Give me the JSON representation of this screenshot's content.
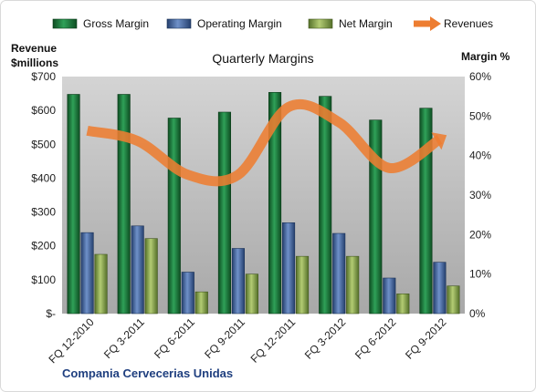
{
  "chart_data": {
    "type": "bar",
    "title": "Quarterly Margins",
    "subtitle": "Compania Cervecerias Unidas",
    "ylabel_left": "Revenue $millions",
    "ylabel_right": "Margin %",
    "categories": [
      "FQ 12-2010",
      "FQ 3-2011",
      "FQ 6-2011",
      "FQ 9-2011",
      "FQ 12-2011",
      "FQ 3-2012",
      "FQ 6-2012",
      "FQ 9-2012"
    ],
    "left_axis": {
      "min": 0,
      "max": 700,
      "ticks": [
        0,
        100,
        200,
        300,
        400,
        500,
        600,
        700
      ],
      "tick_labels": [
        "$-",
        "$100",
        "$200",
        "$300",
        "$400",
        "$500",
        "$600",
        "$700"
      ]
    },
    "right_axis": {
      "min": 0,
      "max": 60,
      "ticks": [
        0,
        10,
        20,
        30,
        40,
        50,
        60
      ],
      "tick_labels": [
        "0%",
        "10%",
        "20%",
        "30%",
        "40%",
        "50%",
        "60%"
      ]
    },
    "series": [
      {
        "name": "Gross Margin",
        "type": "bar",
        "axis": "right",
        "color": "#1e7a3c",
        "values": [
          55.5,
          55.5,
          49.5,
          51,
          56,
          55,
          49,
          52
        ]
      },
      {
        "name": "Operating Margin",
        "type": "bar",
        "axis": "right",
        "color": "#4f6fa8",
        "values": [
          20.5,
          22.2,
          10.5,
          16.5,
          23,
          20.3,
          9,
          13
        ]
      },
      {
        "name": "Net Margin",
        "type": "bar",
        "axis": "right",
        "color": "#8aa64a",
        "values": [
          15,
          19,
          5.5,
          10,
          14.5,
          14.5,
          5,
          7
        ]
      },
      {
        "name": "Revenues",
        "type": "line",
        "axis": "left",
        "color": "#ed7d31",
        "values": [
          540,
          510,
          410,
          410,
          610,
          565,
          430,
          515
        ]
      }
    ],
    "legend": "top",
    "grid": false
  }
}
